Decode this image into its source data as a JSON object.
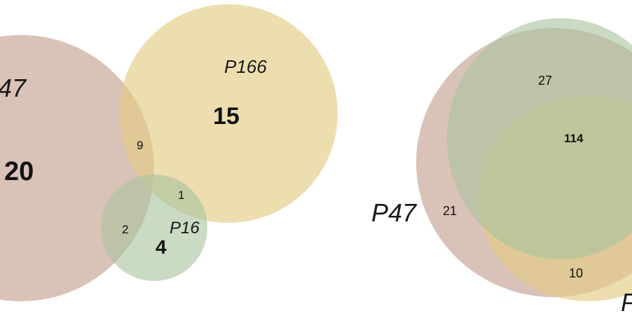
{
  "colors": {
    "p47": "#c9a898",
    "p166": "#e3cd84",
    "p16": "#a9c39e",
    "green": "#a9c39e",
    "background": "#ffffff"
  },
  "left_diagram": {
    "labels": {
      "p47": "47",
      "p166": "P166",
      "p16": "P16"
    },
    "counts": {
      "p47_only": "20",
      "p166_only": "15",
      "p16_only": "4",
      "p47_p166": "9",
      "p166_p16": "1",
      "p47_p16": "2"
    }
  },
  "right_diagram": {
    "labels": {
      "p47": "P47",
      "partial": "P"
    },
    "counts": {
      "green_p47": "27",
      "center": "114",
      "p47_only": "21",
      "bottom": "10"
    }
  }
}
